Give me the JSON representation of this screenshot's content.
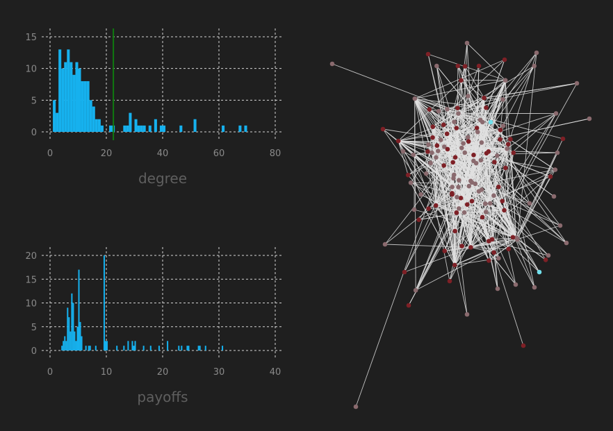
{
  "colors": {
    "background": "#1f1f1f",
    "bar": "#16b1ee",
    "grid": "#d6d6d6",
    "tick_text": "#8a8a8a",
    "axis_text": "#5f5f5f",
    "mean_line": "#0f7a0f",
    "edge": "#e0e0e0",
    "node_brown": "#8a6a6e",
    "node_red": "#7e2026",
    "node_cyan": "#72e0ec"
  },
  "chart_data": [
    {
      "type": "bar",
      "xlabel": "degree",
      "xlim": [
        0,
        80
      ],
      "ylim": [
        0,
        15
      ],
      "xticks": [
        "0",
        "20",
        "40",
        "60",
        "80"
      ],
      "yticks": [
        "0",
        "5",
        "10",
        "15"
      ],
      "grid": true,
      "bin_width": 1,
      "vline": 22.5,
      "bars": [
        {
          "x": 1,
          "y": 5
        },
        {
          "x": 2,
          "y": 3
        },
        {
          "x": 3,
          "y": 13
        },
        {
          "x": 4,
          "y": 10
        },
        {
          "x": 5,
          "y": 11
        },
        {
          "x": 6,
          "y": 13
        },
        {
          "x": 7,
          "y": 11
        },
        {
          "x": 8,
          "y": 9
        },
        {
          "x": 9,
          "y": 11
        },
        {
          "x": 10,
          "y": 10
        },
        {
          "x": 11,
          "y": 8
        },
        {
          "x": 12,
          "y": 8
        },
        {
          "x": 13,
          "y": 8
        },
        {
          "x": 14,
          "y": 5
        },
        {
          "x": 15,
          "y": 4
        },
        {
          "x": 16,
          "y": 2
        },
        {
          "x": 17,
          "y": 2
        },
        {
          "x": 18,
          "y": 1
        },
        {
          "x": 21,
          "y": 1
        },
        {
          "x": 22,
          "y": 1
        },
        {
          "x": 26,
          "y": 1
        },
        {
          "x": 27,
          "y": 1
        },
        {
          "x": 28,
          "y": 3
        },
        {
          "x": 30,
          "y": 2
        },
        {
          "x": 31,
          "y": 1
        },
        {
          "x": 32,
          "y": 1
        },
        {
          "x": 33,
          "y": 1
        },
        {
          "x": 35,
          "y": 1
        },
        {
          "x": 37,
          "y": 2
        },
        {
          "x": 39,
          "y": 1
        },
        {
          "x": 40,
          "y": 1
        },
        {
          "x": 46,
          "y": 1
        },
        {
          "x": 51,
          "y": 2
        },
        {
          "x": 61,
          "y": 1
        },
        {
          "x": 67,
          "y": 1
        },
        {
          "x": 69,
          "y": 1
        }
      ]
    },
    {
      "type": "bar",
      "xlabel": "payoffs",
      "xlim": [
        0,
        40
      ],
      "ylim": [
        0,
        20
      ],
      "xticks": [
        "0",
        "10",
        "20",
        "30",
        "40"
      ],
      "yticks": [
        "0",
        "5",
        "10",
        "15",
        "20"
      ],
      "grid": true,
      "bin_width": 0.25,
      "bars": [
        {
          "x": 2.0,
          "y": 1
        },
        {
          "x": 2.25,
          "y": 2
        },
        {
          "x": 2.5,
          "y": 3
        },
        {
          "x": 2.75,
          "y": 2
        },
        {
          "x": 3.0,
          "y": 9
        },
        {
          "x": 3.25,
          "y": 7
        },
        {
          "x": 3.5,
          "y": 4
        },
        {
          "x": 3.75,
          "y": 12
        },
        {
          "x": 4.0,
          "y": 10
        },
        {
          "x": 4.25,
          "y": 4
        },
        {
          "x": 4.5,
          "y": 2
        },
        {
          "x": 4.75,
          "y": 5
        },
        {
          "x": 5.0,
          "y": 17
        },
        {
          "x": 5.25,
          "y": 6
        },
        {
          "x": 5.5,
          "y": 3
        },
        {
          "x": 6.25,
          "y": 1
        },
        {
          "x": 6.75,
          "y": 1
        },
        {
          "x": 7.0,
          "y": 1
        },
        {
          "x": 8.0,
          "y": 1
        },
        {
          "x": 9.5,
          "y": 20
        },
        {
          "x": 9.75,
          "y": 2
        },
        {
          "x": 10.0,
          "y": 2
        },
        {
          "x": 11.75,
          "y": 1
        },
        {
          "x": 13.0,
          "y": 1
        },
        {
          "x": 13.75,
          "y": 2
        },
        {
          "x": 14.5,
          "y": 2
        },
        {
          "x": 14.75,
          "y": 1
        },
        {
          "x": 15.0,
          "y": 2
        },
        {
          "x": 16.5,
          "y": 1
        },
        {
          "x": 17.75,
          "y": 1
        },
        {
          "x": 19.25,
          "y": 1
        },
        {
          "x": 20.75,
          "y": 2
        },
        {
          "x": 22.75,
          "y": 1
        },
        {
          "x": 23.25,
          "y": 1
        },
        {
          "x": 24.25,
          "y": 1
        },
        {
          "x": 24.5,
          "y": 1
        },
        {
          "x": 26.25,
          "y": 1
        },
        {
          "x": 26.5,
          "y": 1
        },
        {
          "x": 27.5,
          "y": 1
        },
        {
          "x": 30.5,
          "y": 1
        }
      ]
    }
  ],
  "network": {
    "type": "graph",
    "node_color_classes": [
      "brown",
      "red",
      "cyan"
    ],
    "approx_node_count": 150
  }
}
